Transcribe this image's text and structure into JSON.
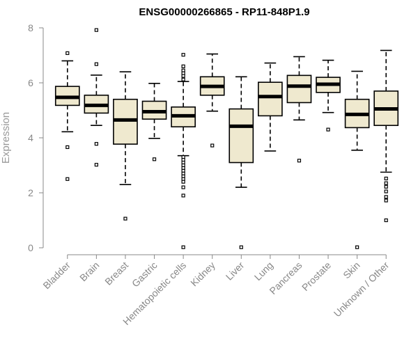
{
  "chart_data": {
    "type": "box",
    "title": "ENSG00000266865 - RP11-848P1.9",
    "xlabel": "",
    "ylabel": "Expression",
    "ylim": [
      0,
      8
    ],
    "yticks": [
      0,
      2,
      4,
      6,
      8
    ],
    "grid": false,
    "colors": {
      "box_fill": "#efe9cf",
      "stroke": "#000000",
      "axis": "#888888"
    },
    "categories": [
      "Bladder",
      "Brain",
      "Breast",
      "Gastric",
      "Hematopoietic cells",
      "Kidney",
      "Liver",
      "Lung",
      "Pancreas",
      "Prostate",
      "Skin",
      "Unknown / Other"
    ],
    "boxes": [
      {
        "category": "Bladder",
        "whisker_low": 4.22,
        "q1": 5.18,
        "median": 5.47,
        "q3": 5.87,
        "whisker_high": 6.8,
        "outliers": [
          7.08,
          3.66,
          2.5
        ]
      },
      {
        "category": "Brain",
        "whisker_low": 4.45,
        "q1": 4.9,
        "median": 5.18,
        "q3": 5.55,
        "whisker_high": 6.28,
        "outliers": [
          7.92,
          6.68,
          3.78,
          3.02
        ]
      },
      {
        "category": "Breast",
        "whisker_low": 2.3,
        "q1": 3.77,
        "median": 4.65,
        "q3": 5.4,
        "whisker_high": 6.4,
        "outliers": [
          1.06
        ]
      },
      {
        "category": "Gastric",
        "whisker_low": 3.98,
        "q1": 4.68,
        "median": 4.95,
        "q3": 5.33,
        "whisker_high": 5.98,
        "outliers": [
          3.22
        ]
      },
      {
        "category": "Hematopoietic cells",
        "whisker_low": 3.35,
        "q1": 4.4,
        "median": 4.8,
        "q3": 5.12,
        "whisker_high": 6.05,
        "outliers": [
          7.02,
          6.6,
          6.45,
          6.35,
          6.25,
          6.12,
          3.3,
          3.2,
          3.1,
          3.0,
          2.9,
          2.8,
          2.7,
          2.6,
          2.5,
          2.4,
          2.2,
          1.9,
          0.02
        ]
      },
      {
        "category": "Kidney",
        "whisker_low": 4.97,
        "q1": 5.55,
        "median": 5.87,
        "q3": 6.22,
        "whisker_high": 7.05,
        "outliers": [
          3.72
        ]
      },
      {
        "category": "Liver",
        "whisker_low": 2.2,
        "q1": 3.1,
        "median": 4.42,
        "q3": 5.05,
        "whisker_high": 6.22,
        "outliers": [
          0.02
        ]
      },
      {
        "category": "Lung",
        "whisker_low": 3.52,
        "q1": 4.8,
        "median": 5.5,
        "q3": 6.02,
        "whisker_high": 6.72,
        "outliers": []
      },
      {
        "category": "Pancreas",
        "whisker_low": 4.65,
        "q1": 5.28,
        "median": 5.88,
        "q3": 6.27,
        "whisker_high": 6.95,
        "outliers": [
          3.17
        ]
      },
      {
        "category": "Prostate",
        "whisker_low": 4.92,
        "q1": 5.65,
        "median": 5.95,
        "q3": 6.2,
        "whisker_high": 6.82,
        "outliers": [
          4.3
        ]
      },
      {
        "category": "Skin",
        "whisker_low": 3.55,
        "q1": 4.37,
        "median": 4.85,
        "q3": 5.4,
        "whisker_high": 6.42,
        "outliers": [
          0.02
        ]
      },
      {
        "category": "Unknown / Other",
        "whisker_low": 2.75,
        "q1": 4.45,
        "median": 5.05,
        "q3": 5.7,
        "whisker_high": 7.18,
        "outliers": [
          2.52,
          2.35,
          2.22,
          2.05,
          1.85,
          1.72,
          1.0
        ]
      }
    ]
  }
}
